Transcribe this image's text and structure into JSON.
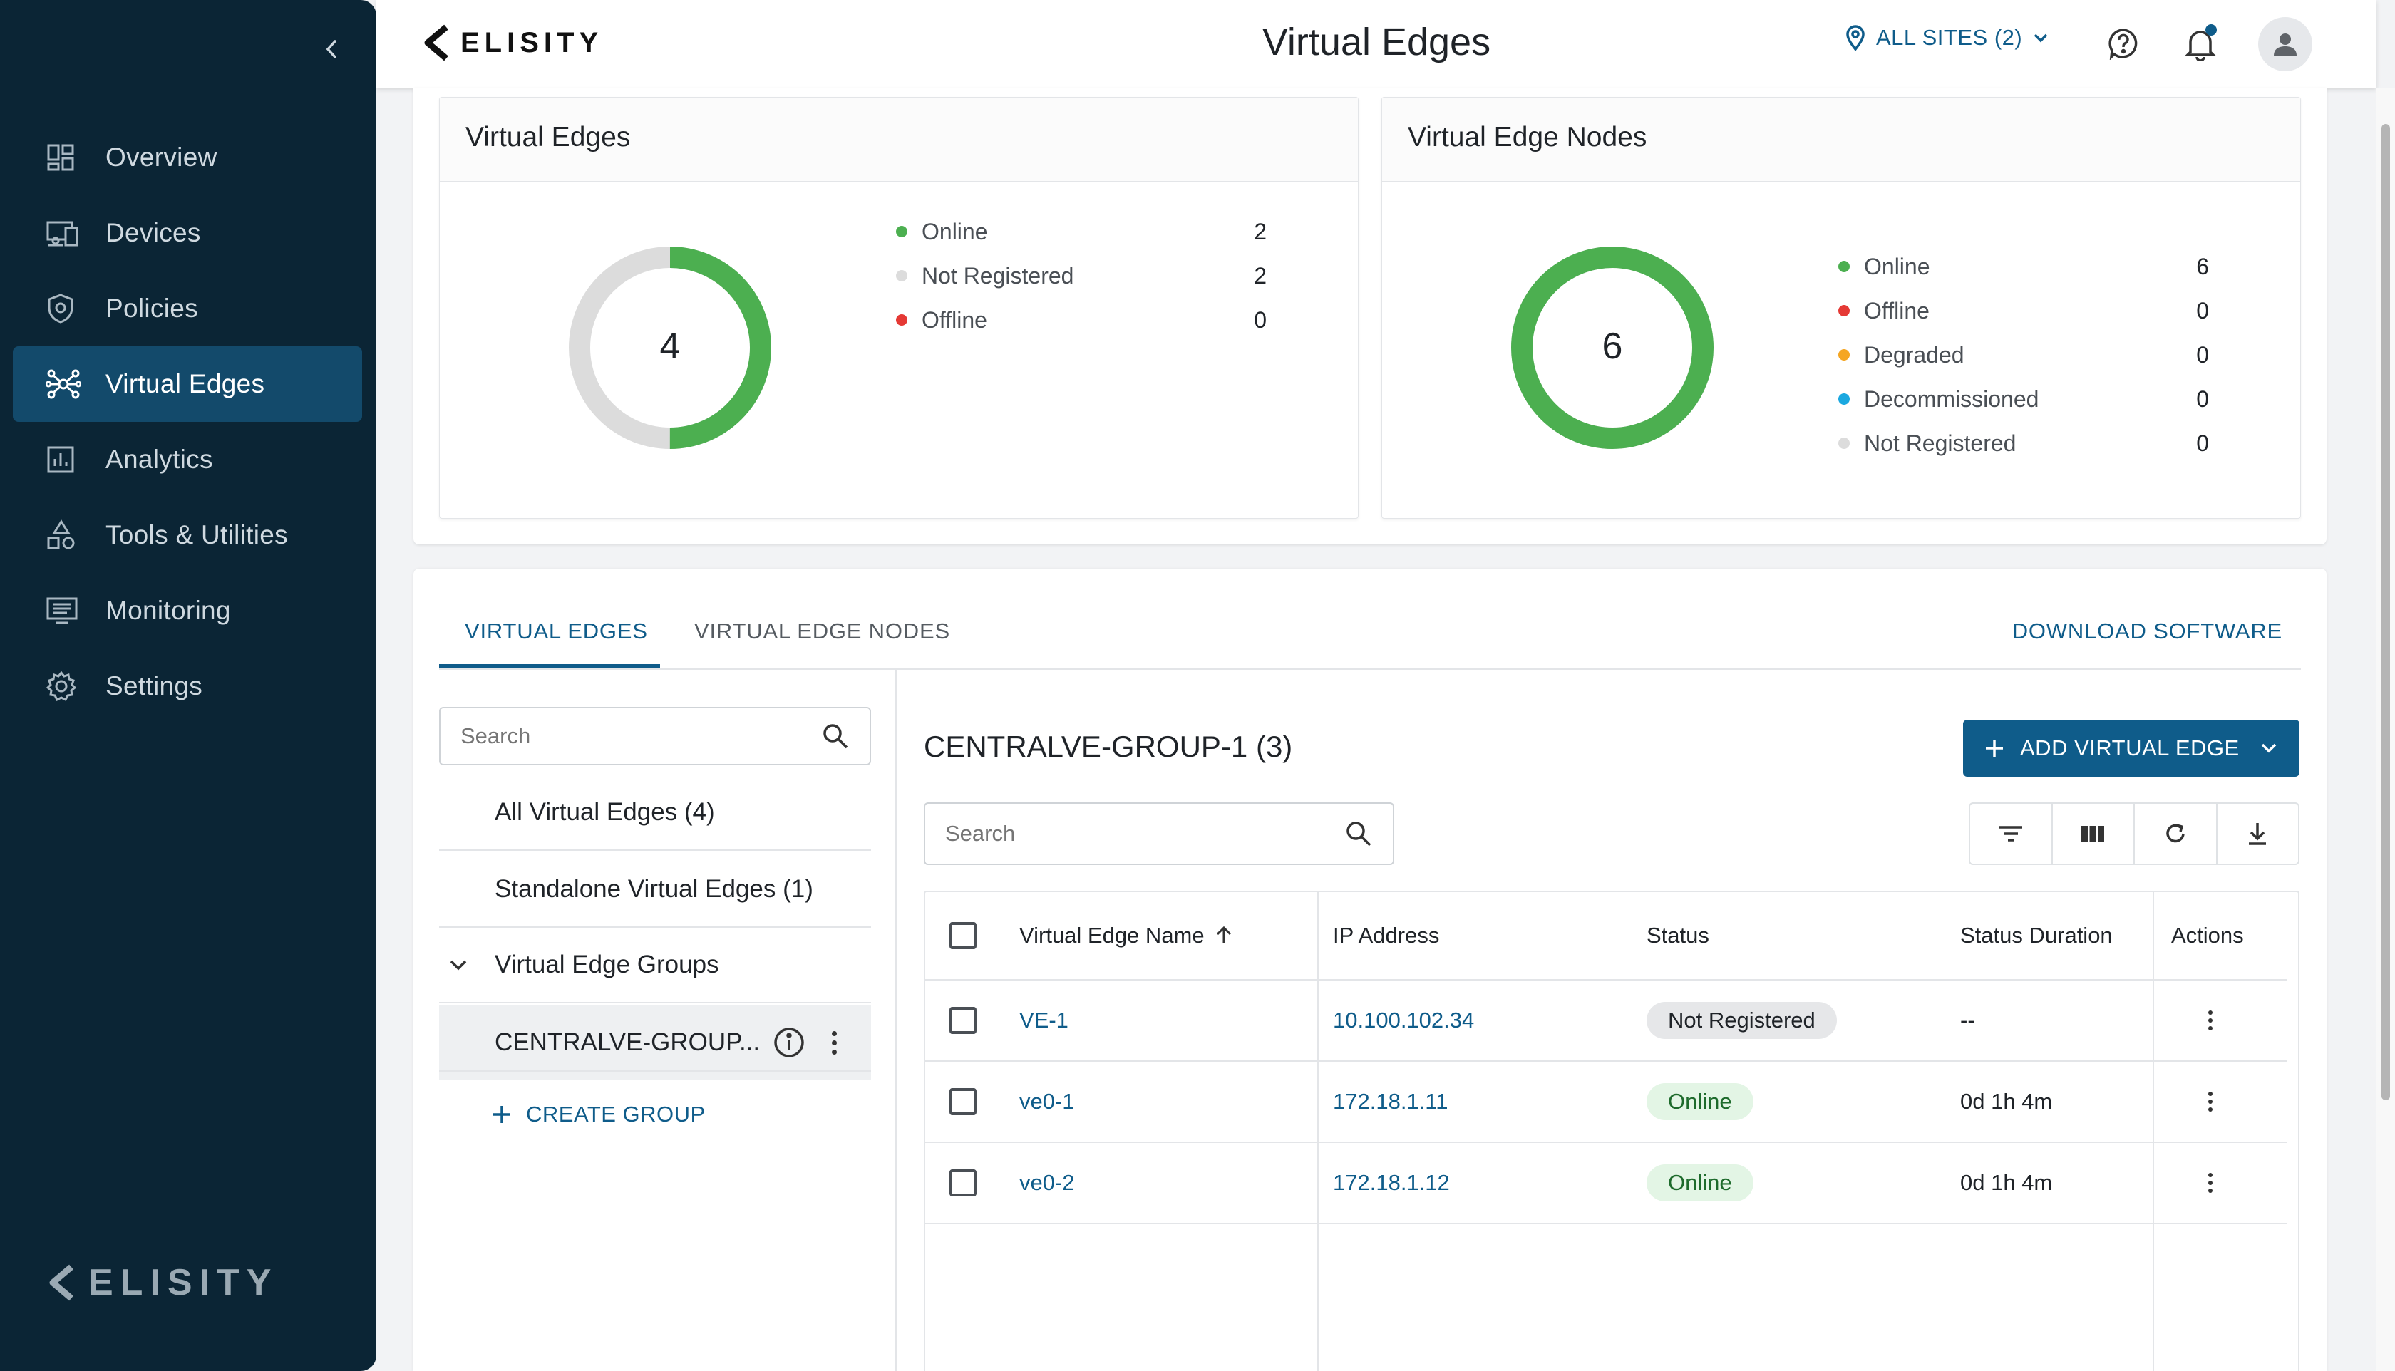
{
  "app": {
    "brand": "ELISITY",
    "page_title": "Virtual Edges",
    "sites_label": "ALL SITES (2)"
  },
  "sidebar": {
    "items": [
      {
        "label": "Overview",
        "icon": "dashboard-icon",
        "active": false
      },
      {
        "label": "Devices",
        "icon": "devices-icon",
        "active": false
      },
      {
        "label": "Policies",
        "icon": "shield-icon",
        "active": false
      },
      {
        "label": "Virtual Edges",
        "icon": "network-hub-icon",
        "active": true
      },
      {
        "label": "Analytics",
        "icon": "analytics-icon",
        "active": false
      },
      {
        "label": "Tools & Utilities",
        "icon": "shapes-icon",
        "active": false
      },
      {
        "label": "Monitoring",
        "icon": "monitor-list-icon",
        "active": false
      },
      {
        "label": "Settings",
        "icon": "gear-icon",
        "active": false
      }
    ]
  },
  "summary": {
    "virtual_edges": {
      "title": "Virtual Edges",
      "total": "4",
      "legend": [
        {
          "label": "Online",
          "value": "2",
          "color": "#4caf50"
        },
        {
          "label": "Not Registered",
          "value": "2",
          "color": "#dcdcdc"
        },
        {
          "label": "Offline",
          "value": "0",
          "color": "#e53935"
        }
      ]
    },
    "virtual_edge_nodes": {
      "title": "Virtual Edge Nodes",
      "total": "6",
      "legend": [
        {
          "label": "Online",
          "value": "6",
          "color": "#4caf50"
        },
        {
          "label": "Offline",
          "value": "0",
          "color": "#e53935"
        },
        {
          "label": "Degraded",
          "value": "0",
          "color": "#f5a623"
        },
        {
          "label": "Decommissioned",
          "value": "0",
          "color": "#1ba8e0"
        },
        {
          "label": "Not Registered",
          "value": "0",
          "color": "#dcdcdc"
        }
      ]
    }
  },
  "tabs": {
    "virtual_edges": "VIRTUAL EDGES",
    "virtual_edge_nodes": "VIRTUAL EDGE NODES",
    "download": "DOWNLOAD SOFTWARE"
  },
  "tree": {
    "search_placeholder": "Search",
    "all": "All Virtual Edges (4)",
    "standalone": "Standalone Virtual Edges (1)",
    "groups": "Virtual Edge Groups",
    "selected_group": "CENTRALVE-GROUP...",
    "create_group": "CREATE GROUP"
  },
  "content": {
    "group_title": "CENTRALVE-GROUP-1 (3)",
    "add_button": "ADD VIRTUAL EDGE",
    "search_placeholder": "Search",
    "columns": [
      "Virtual Edge Name",
      "IP Address",
      "Status",
      "Status Duration",
      "Actions"
    ],
    "rows": [
      {
        "name": "VE-1",
        "ip": "10.100.102.34",
        "status": "Not Registered",
        "status_kind": "grey",
        "duration": "--"
      },
      {
        "name": "ve0-1",
        "ip": "172.18.1.11",
        "status": "Online",
        "status_kind": "green",
        "duration": "0d 1h 4m"
      },
      {
        "name": "ve0-2",
        "ip": "172.18.1.12",
        "status": "Online",
        "status_kind": "green",
        "duration": "0d 1h 4m"
      }
    ]
  },
  "colors": {
    "sidebar_bg": "#0b2535",
    "sidebar_active": "#134a6b",
    "accent": "#0f5c8a",
    "online_green": "#4caf50"
  }
}
